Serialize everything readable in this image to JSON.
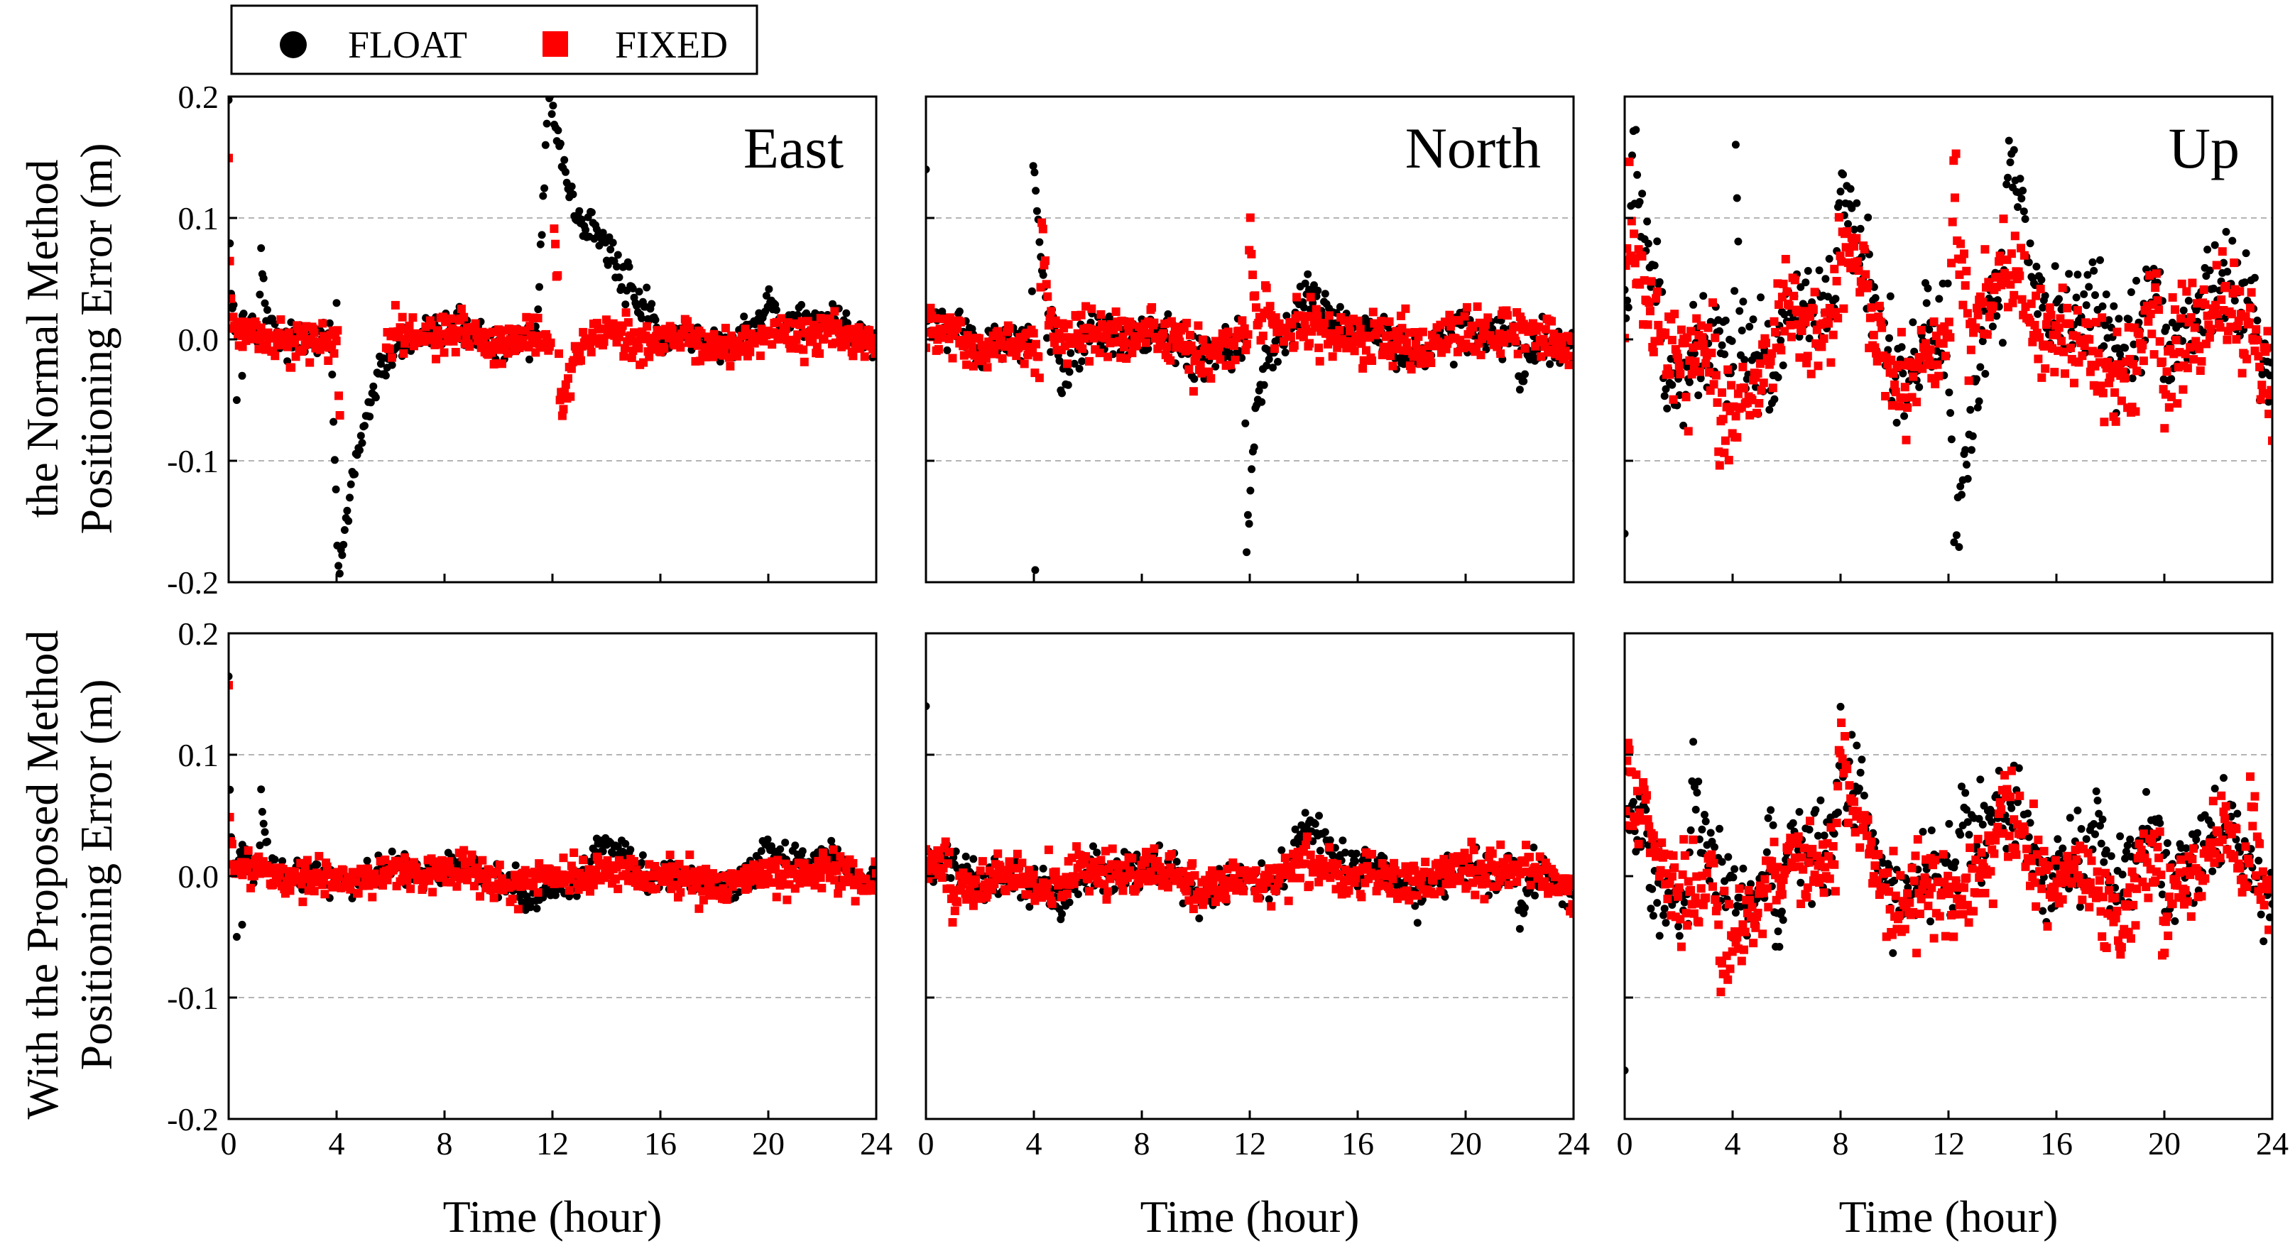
{
  "chart_data": {
    "type": "scatter",
    "legend": {
      "placement": "top-left",
      "entries": [
        {
          "label": "FLOAT",
          "marker": "circle",
          "color": "#000000"
        },
        {
          "label": "FIXED",
          "marker": "square",
          "color": "#ff0000"
        }
      ]
    },
    "xlabel": "Time (hour)",
    "xlim": [
      0,
      24
    ],
    "xticks": [
      "0",
      "4",
      "8",
      "12",
      "16",
      "20",
      "24"
    ],
    "ylim": [
      -0.2,
      0.2
    ],
    "yticks": [
      "-0.2",
      "-0.1",
      "0.0",
      "0.1",
      "0.2"
    ],
    "gridlines_y": [
      -0.1,
      0.1
    ],
    "row_labels": [
      {
        "line1": "the Normal Method",
        "line2": "Positioning Error (m)"
      },
      {
        "line1": "With the Proposed Method",
        "line2": "Positioning Error (m)"
      }
    ],
    "columns": [
      "East",
      "North",
      "Up"
    ],
    "panels": [
      {
        "row": 0,
        "component": "East",
        "label": "East",
        "float": {
          "base": 0.003,
          "noise": 0.007,
          "sway": 0.006,
          "events": [
            [
              0.0,
              0.18,
              0.05
            ],
            [
              1.2,
              0.06,
              0.2
            ],
            [
              4.1,
              -0.19,
              0.9
            ],
            [
              11.9,
              0.2,
              1.5
            ],
            [
              13.5,
              0.02,
              1.2
            ],
            [
              16.0,
              -0.02,
              0.8
            ],
            [
              20.0,
              0.02,
              1.5
            ]
          ],
          "sparse": [
            [
              0.5,
              -0.03
            ],
            [
              4.0,
              0.03
            ],
            [
              0.3,
              -0.05
            ]
          ]
        },
        "fixed": {
          "base": 0.0,
          "noise": 0.008,
          "sway": 0.004,
          "events": [
            [
              0.0,
              0.14,
              0.05
            ],
            [
              4.1,
              -0.06,
              0.15
            ],
            [
              12.0,
              0.18,
              0.12
            ],
            [
              12.3,
              -0.07,
              0.35
            ]
          ],
          "gaps": [
            [
              4.15,
              5.8
            ],
            [
              11.95,
              12.05
            ]
          ]
        }
      },
      {
        "row": 0,
        "component": "North",
        "label": "North",
        "float": {
          "base": 0.0,
          "noise": 0.009,
          "sway": 0.008,
          "events": [
            [
              4.0,
              0.17,
              0.3
            ],
            [
              5.0,
              -0.04,
              0.5
            ],
            [
              11.9,
              -0.18,
              0.3
            ],
            [
              14.0,
              0.03,
              1.5
            ],
            [
              22.0,
              -0.05,
              0.4
            ]
          ],
          "sparse": [
            [
              0.0,
              0.14
            ],
            [
              4.05,
              -0.19
            ]
          ]
        },
        "fixed": {
          "base": 0.0,
          "noise": 0.01,
          "sway": 0.006,
          "events": [
            [
              4.3,
              0.1,
              0.25
            ],
            [
              12.0,
              0.11,
              0.15
            ],
            [
              12.6,
              0.04,
              0.3
            ]
          ],
          "gaps": []
        }
      },
      {
        "row": 0,
        "component": "Up",
        "label": "Up",
        "float": {
          "base": 0.01,
          "noise": 0.02,
          "sway": 0.03,
          "events": [
            [
              0.3,
              0.09,
              0.4
            ],
            [
              1.5,
              -0.07,
              0.5
            ],
            [
              4.1,
              0.2,
              0.15
            ],
            [
              5.4,
              -0.08,
              0.3
            ],
            [
              8.0,
              0.08,
              0.8
            ],
            [
              12.2,
              -0.19,
              0.6
            ],
            [
              14.3,
              0.09,
              0.9
            ],
            [
              17.5,
              0.04,
              1.5
            ],
            [
              20.0,
              -0.06,
              0.6
            ],
            [
              23.0,
              0.04,
              0.4
            ]
          ],
          "sparse": [
            [
              0.0,
              -0.16
            ]
          ]
        },
        "fixed": {
          "base": 0.0,
          "noise": 0.02,
          "sway": 0.025,
          "events": [
            [
              0.1,
              0.07,
              0.3
            ],
            [
              3.5,
              -0.07,
              0.5
            ],
            [
              8.0,
              0.07,
              0.8
            ],
            [
              12.2,
              0.15,
              0.35
            ],
            [
              14.0,
              0.02,
              1.0
            ],
            [
              20.0,
              -0.06,
              0.5
            ],
            [
              23.2,
              0.04,
              0.3
            ]
          ],
          "gaps": []
        }
      },
      {
        "row": 1,
        "component": "East",
        "label": "",
        "float": {
          "base": 0.002,
          "noise": 0.006,
          "sway": 0.006,
          "events": [
            [
              0.0,
              0.15,
              0.05
            ],
            [
              1.2,
              0.065,
              0.2
            ],
            [
              13.7,
              0.025,
              1.0
            ],
            [
              11.0,
              -0.02,
              1.2
            ],
            [
              20.0,
              0.015,
              1.5
            ]
          ],
          "sparse": [
            [
              0.3,
              -0.05
            ],
            [
              0.5,
              -0.04
            ]
          ]
        },
        "fixed": {
          "base": 0.0,
          "noise": 0.007,
          "sway": 0.004,
          "events": [
            [
              0.0,
              0.15,
              0.04
            ]
          ],
          "gaps": []
        }
      },
      {
        "row": 1,
        "component": "North",
        "label": "",
        "float": {
          "base": 0.0,
          "noise": 0.008,
          "sway": 0.008,
          "events": [
            [
              14.0,
              0.03,
              1.5
            ],
            [
              22.0,
              -0.05,
              0.3
            ],
            [
              5.0,
              -0.02,
              0.5
            ]
          ],
          "sparse": [
            [
              0.0,
              0.14
            ]
          ]
        },
        "fixed": {
          "base": 0.0,
          "noise": 0.009,
          "sway": 0.006,
          "events": [
            [
              1.0,
              -0.03,
              0.4
            ]
          ],
          "gaps": []
        }
      },
      {
        "row": 1,
        "component": "Up",
        "label": "",
        "float": {
          "base": 0.01,
          "noise": 0.018,
          "sway": 0.025,
          "events": [
            [
              0.0,
              0.19,
              0.05
            ],
            [
              1.0,
              -0.06,
              0.6
            ],
            [
              2.5,
              0.09,
              0.4
            ],
            [
              5.6,
              -0.09,
              0.3
            ],
            [
              8.0,
              0.07,
              0.8
            ],
            [
              12.5,
              0.06,
              0.6
            ],
            [
              17.5,
              0.05,
              1.5
            ],
            [
              20.0,
              -0.06,
              0.6
            ],
            [
              23.5,
              0.02,
              0.5
            ]
          ],
          "sparse": [
            [
              0.0,
              -0.16
            ]
          ]
        },
        "fixed": {
          "base": 0.0,
          "noise": 0.018,
          "sway": 0.022,
          "events": [
            [
              0.1,
              0.08,
              0.3
            ],
            [
              3.5,
              -0.07,
              0.5
            ],
            [
              8.0,
              0.09,
              0.6
            ],
            [
              14.0,
              0.02,
              1.0
            ],
            [
              20.0,
              -0.07,
              0.5
            ],
            [
              23.2,
              0.07,
              0.3
            ]
          ],
          "gaps": []
        }
      }
    ]
  }
}
